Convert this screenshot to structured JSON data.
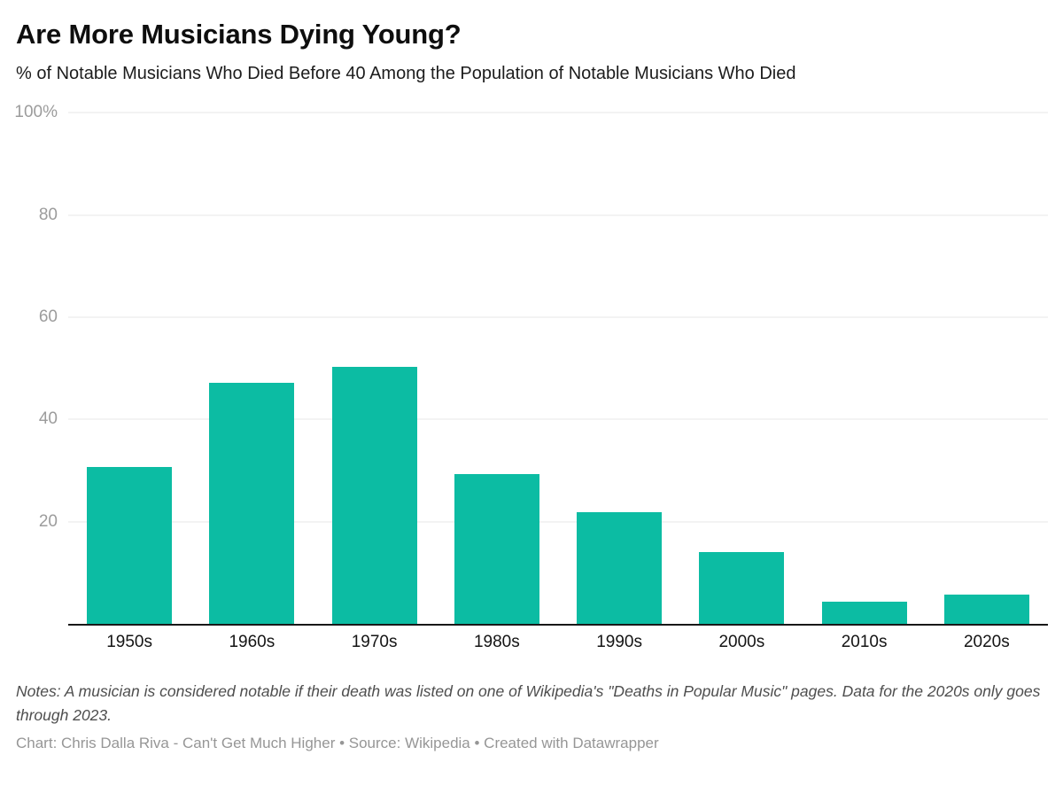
{
  "header": {
    "title": "Are More Musicians Dying Young?",
    "subtitle": "% of Notable Musicians Who Died Before 40 Among the Population of Notable Musicians Who Died"
  },
  "chart_data": {
    "type": "bar",
    "title": "Are More Musicians Dying Young?",
    "subtitle": "% of Notable Musicians Who Died Before 40 Among the Population of Notable Musicians Who Died",
    "categories": [
      "1950s",
      "1960s",
      "1970s",
      "1980s",
      "1990s",
      "2000s",
      "2010s",
      "2020s"
    ],
    "values": [
      30.7,
      47.1,
      50.3,
      29.4,
      21.9,
      14.0,
      4.4,
      5.7
    ],
    "xlabel": "",
    "ylabel": "",
    "ylim": [
      0,
      100
    ],
    "y_ticks": [
      {
        "label": "100%",
        "value": 100
      },
      {
        "label": "80",
        "value": 80
      },
      {
        "label": "60",
        "value": 60
      },
      {
        "label": "40",
        "value": 40
      },
      {
        "label": "20",
        "value": 20
      }
    ],
    "grid": true,
    "legend": "none",
    "bar_color": "#0cbca3"
  },
  "notes": "Notes: A musician is considered notable if their death was listed on one of Wikipedia's \"Deaths in Popular Music\" pages. Data for the 2020s only goes through 2023.",
  "footer": "Chart: Chris Dalla Riva - Can't Get Much Higher • Source: Wikipedia • Created with Datawrapper",
  "colors": {
    "bar": "#0cbca3",
    "gridline": "#e7e7e7",
    "baseline": "#181818",
    "axis_label": "#9c9c9c",
    "title": "#0e0e0e",
    "notes": "#4e4e4e",
    "footer": "#969696"
  }
}
